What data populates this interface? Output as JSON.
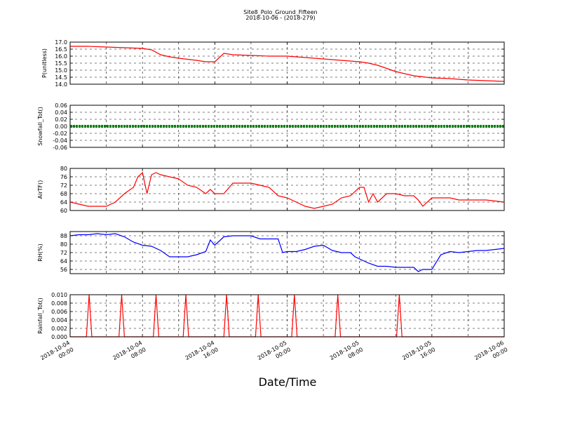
{
  "chart_data": {
    "type": "line",
    "title": "Site8_Polo_Ground_Fifteen",
    "subtitle": "2018-10-06 - (2018-279)",
    "xlabel": "Date/Time",
    "x_range": [
      "2018-10-04 00:00",
      "2018-10-06 00:00"
    ],
    "x_tick_labels": [
      [
        "2018-10-04",
        "00:00"
      ],
      [
        "2018-10-04",
        "08:00"
      ],
      [
        "2018-10-04",
        "16:00"
      ],
      [
        "2018-10-05",
        "00:00"
      ],
      [
        "2018-10-05",
        "08:00"
      ],
      [
        "2018-10-05",
        "16:00"
      ],
      [
        "2018-10-06",
        "00:00"
      ]
    ],
    "grid": true,
    "panels": [
      {
        "ylabel": "P(unitless)",
        "ylim": [
          14.0,
          17.0
        ],
        "yticks": [
          "14.0",
          "14.5",
          "15.0",
          "15.5",
          "16.0",
          "16.5",
          "17.0"
        ],
        "color": "#ff0000",
        "x_hours": [
          0,
          2,
          4,
          6,
          8,
          9,
          10,
          11,
          12,
          14,
          15,
          16,
          17,
          18,
          20,
          22,
          24,
          26,
          28,
          30,
          32,
          33,
          34,
          36,
          38,
          40,
          42,
          44,
          46,
          48
        ],
        "values": [
          16.7,
          16.7,
          16.65,
          16.6,
          16.55,
          16.45,
          16.1,
          15.95,
          15.85,
          15.7,
          15.6,
          15.6,
          16.2,
          16.1,
          16.05,
          16.0,
          16.0,
          15.9,
          15.8,
          15.7,
          15.6,
          15.5,
          15.35,
          14.9,
          14.6,
          14.45,
          14.4,
          14.3,
          14.25,
          14.2
        ]
      },
      {
        "ylabel": "Snowfall_Tot()",
        "ylim": [
          -0.06,
          0.06
        ],
        "yticks": [
          "-0.06",
          "-0.04",
          "-0.02",
          "0.00",
          "0.02",
          "0.04",
          "0.06"
        ],
        "color": "#008000",
        "x_hours": [
          0,
          48
        ],
        "values": [
          0.0,
          0.0
        ]
      },
      {
        "ylabel": "AirTF()",
        "ylim": [
          60,
          80
        ],
        "yticks": [
          "60",
          "64",
          "68",
          "72",
          "76",
          "80"
        ],
        "color": "#ff0000",
        "x_hours": [
          0,
          1,
          2,
          3,
          4,
          5,
          6,
          7,
          7.5,
          8,
          8.5,
          9,
          9.5,
          10,
          11,
          12,
          13,
          14,
          15,
          15.5,
          16,
          17,
          18,
          19,
          20,
          21,
          22,
          23,
          24,
          25,
          26,
          27,
          28,
          29,
          30,
          31,
          32,
          32.5,
          33,
          33.5,
          34,
          35,
          36,
          37,
          38,
          38.5,
          39,
          40,
          41,
          42,
          43,
          44,
          46,
          48
        ],
        "values": [
          64,
          63,
          62,
          62,
          62,
          64,
          68,
          71,
          76,
          78,
          68,
          77,
          78,
          77,
          76,
          75,
          72,
          71,
          68,
          70,
          68,
          68,
          73,
          73,
          73,
          72,
          71,
          67,
          66,
          64,
          62,
          61,
          62,
          63,
          66,
          67,
          71,
          71,
          64,
          68,
          64,
          68,
          68,
          67,
          67,
          65,
          62,
          66,
          66,
          66,
          65,
          65,
          65,
          64
        ]
      },
      {
        "ylabel": "RH(%)",
        "ylim": [
          52,
          92
        ],
        "yticks": [
          "56",
          "64",
          "72",
          "80",
          "88"
        ],
        "color": "#0000ff",
        "x_hours": [
          0,
          1,
          2,
          3,
          4,
          5,
          6,
          7,
          8,
          9,
          10,
          11,
          12,
          13,
          14,
          15,
          15.5,
          16,
          17,
          18,
          19,
          20,
          21,
          22,
          23,
          23.5,
          24,
          25,
          26,
          27,
          28,
          29,
          30,
          31,
          31.5,
          32,
          33,
          34,
          35,
          36,
          37,
          38,
          38.5,
          39,
          40,
          41,
          42,
          43,
          44,
          45,
          46,
          47,
          48
        ],
        "values": [
          88,
          89,
          89,
          90,
          89,
          90,
          87,
          82,
          79,
          78,
          74,
          68,
          68,
          68,
          70,
          73,
          84,
          79,
          87,
          88,
          88,
          88,
          85,
          85,
          85,
          72,
          73,
          73,
          75,
          78,
          79,
          74,
          72,
          72,
          68,
          66,
          62,
          59,
          59,
          58,
          58,
          58,
          54,
          56,
          56,
          70,
          73,
          72,
          73,
          74,
          74,
          75,
          76
        ]
      },
      {
        "ylabel": "Rainfall_Tot()",
        "ylim": [
          0.0,
          0.01
        ],
        "yticks": [
          "0.000",
          "0.002",
          "0.004",
          "0.006",
          "0.008",
          "0.010"
        ],
        "color": "#ff0000",
        "spike_hours": [
          2.1,
          5.7,
          9.5,
          12.8,
          17.3,
          20.8,
          24.8,
          29.6,
          36.4
        ],
        "spike_value": 0.01
      }
    ]
  }
}
